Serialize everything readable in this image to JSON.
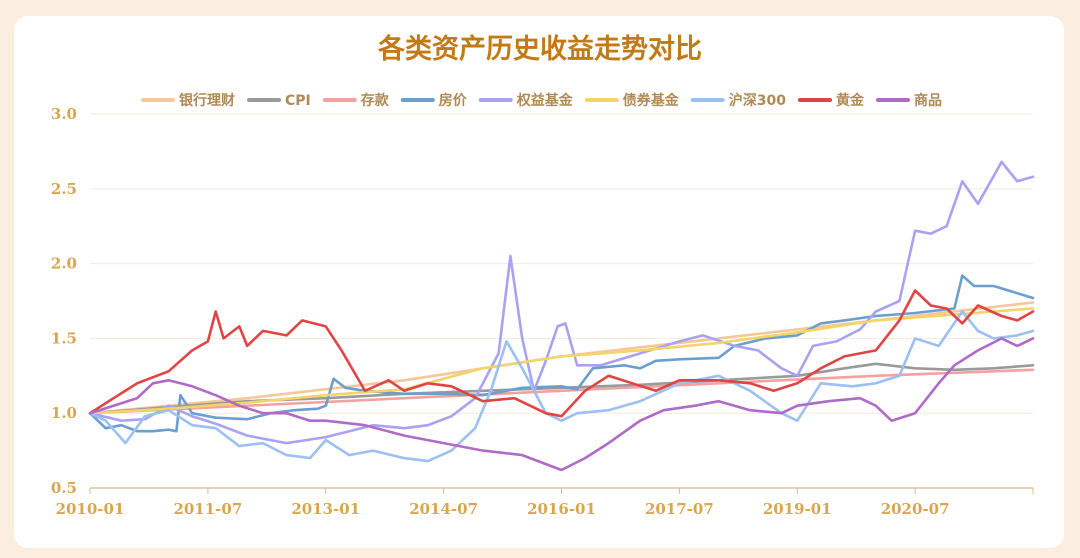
{
  "chart_data": {
    "type": "line",
    "title": "各类资产历史收益走势对比",
    "xlabel": "",
    "ylabel": "",
    "ylim": [
      0.5,
      3.0
    ],
    "yticks": [
      "3.0",
      "2.5",
      "2.0",
      "1.5",
      "1.0",
      "0.5"
    ],
    "xticks": [
      "2010-01",
      "2011-07",
      "2013-01",
      "2014-07",
      "2016-01",
      "2017-07",
      "2019-01",
      "2020-07"
    ],
    "x_range": [
      "2010-01",
      "2022-01"
    ],
    "legend_position": "top",
    "grid": "horizontal",
    "series": [
      {
        "name": "银行理财",
        "color": "#f7c79a",
        "points": [
          [
            2010.0,
            1.0
          ],
          [
            2012.0,
            1.1
          ],
          [
            2014.0,
            1.22
          ],
          [
            2016.0,
            1.38
          ],
          [
            2018.0,
            1.5
          ],
          [
            2020.0,
            1.62
          ],
          [
            2022.0,
            1.74
          ]
        ]
      },
      {
        "name": "CPI",
        "color": "#9a9a9a",
        "points": [
          [
            2010.0,
            1.0
          ],
          [
            2011.0,
            1.04
          ],
          [
            2012.0,
            1.08
          ],
          [
            2013.0,
            1.1
          ],
          [
            2014.0,
            1.13
          ],
          [
            2015.0,
            1.15
          ],
          [
            2016.0,
            1.17
          ],
          [
            2017.0,
            1.19
          ],
          [
            2018.0,
            1.22
          ],
          [
            2019.0,
            1.25
          ],
          [
            2019.6,
            1.3
          ],
          [
            2020.0,
            1.33
          ],
          [
            2020.5,
            1.3
          ],
          [
            2021.0,
            1.29
          ],
          [
            2021.5,
            1.3
          ],
          [
            2022.0,
            1.32
          ]
        ]
      },
      {
        "name": "存款",
        "color": "#f3a1a1",
        "points": [
          [
            2010.0,
            1.0
          ],
          [
            2012.0,
            1.05
          ],
          [
            2014.0,
            1.1
          ],
          [
            2016.0,
            1.15
          ],
          [
            2018.0,
            1.2
          ],
          [
            2020.0,
            1.25
          ],
          [
            2022.0,
            1.29
          ]
        ]
      },
      {
        "name": "房价",
        "color": "#6a9fcf",
        "points": [
          [
            2010.0,
            1.0
          ],
          [
            2010.2,
            0.9
          ],
          [
            2010.4,
            0.92
          ],
          [
            2010.6,
            0.88
          ],
          [
            2010.8,
            0.88
          ],
          [
            2011.0,
            0.89
          ],
          [
            2011.1,
            0.88
          ],
          [
            2011.15,
            1.12
          ],
          [
            2011.3,
            1.0
          ],
          [
            2011.6,
            0.97
          ],
          [
            2012.0,
            0.96
          ],
          [
            2012.3,
            1.0
          ],
          [
            2012.6,
            1.02
          ],
          [
            2012.9,
            1.03
          ],
          [
            2013.0,
            1.05
          ],
          [
            2013.1,
            1.23
          ],
          [
            2013.25,
            1.17
          ],
          [
            2013.5,
            1.15
          ],
          [
            2014.0,
            1.13
          ],
          [
            2014.5,
            1.13
          ],
          [
            2015.0,
            1.12
          ],
          [
            2015.5,
            1.17
          ],
          [
            2016.0,
            1.18
          ],
          [
            2016.2,
            1.16
          ],
          [
            2016.4,
            1.3
          ],
          [
            2016.8,
            1.32
          ],
          [
            2017.0,
            1.3
          ],
          [
            2017.2,
            1.35
          ],
          [
            2017.5,
            1.36
          ],
          [
            2018.0,
            1.37
          ],
          [
            2018.2,
            1.45
          ],
          [
            2018.6,
            1.5
          ],
          [
            2019.0,
            1.52
          ],
          [
            2019.3,
            1.6
          ],
          [
            2019.6,
            1.62
          ],
          [
            2020.0,
            1.65
          ],
          [
            2020.5,
            1.67
          ],
          [
            2021.0,
            1.7
          ],
          [
            2021.1,
            1.92
          ],
          [
            2021.25,
            1.85
          ],
          [
            2021.5,
            1.85
          ],
          [
            2022.0,
            1.77
          ]
        ]
      },
      {
        "name": "权益基金",
        "color": "#a9a2f2",
        "points": [
          [
            2010.0,
            1.0
          ],
          [
            2010.4,
            0.95
          ],
          [
            2010.7,
            0.96
          ],
          [
            2011.0,
            1.05
          ],
          [
            2011.3,
            0.98
          ],
          [
            2011.6,
            0.93
          ],
          [
            2012.0,
            0.85
          ],
          [
            2012.5,
            0.8
          ],
          [
            2013.0,
            0.84
          ],
          [
            2013.3,
            0.88
          ],
          [
            2013.6,
            0.92
          ],
          [
            2014.0,
            0.9
          ],
          [
            2014.3,
            0.92
          ],
          [
            2014.6,
            0.98
          ],
          [
            2014.9,
            1.1
          ],
          [
            2015.2,
            1.4
          ],
          [
            2015.35,
            2.05
          ],
          [
            2015.5,
            1.5
          ],
          [
            2015.65,
            1.15
          ],
          [
            2015.8,
            1.35
          ],
          [
            2015.95,
            1.58
          ],
          [
            2016.05,
            1.6
          ],
          [
            2016.2,
            1.32
          ],
          [
            2016.5,
            1.32
          ],
          [
            2017.0,
            1.4
          ],
          [
            2017.5,
            1.48
          ],
          [
            2017.8,
            1.52
          ],
          [
            2018.2,
            1.45
          ],
          [
            2018.5,
            1.42
          ],
          [
            2018.8,
            1.3
          ],
          [
            2019.0,
            1.25
          ],
          [
            2019.2,
            1.45
          ],
          [
            2019.5,
            1.48
          ],
          [
            2019.8,
            1.56
          ],
          [
            2020.0,
            1.68
          ],
          [
            2020.3,
            1.75
          ],
          [
            2020.5,
            2.22
          ],
          [
            2020.7,
            2.2
          ],
          [
            2020.9,
            2.25
          ],
          [
            2021.1,
            2.55
          ],
          [
            2021.3,
            2.4
          ],
          [
            2021.6,
            2.68
          ],
          [
            2021.8,
            2.55
          ],
          [
            2022.0,
            2.58
          ]
        ]
      },
      {
        "name": "债券基金",
        "color": "#f2d46a",
        "points": [
          [
            2010.0,
            1.0
          ],
          [
            2011.0,
            1.03
          ],
          [
            2012.0,
            1.07
          ],
          [
            2013.0,
            1.12
          ],
          [
            2014.0,
            1.16
          ],
          [
            2015.0,
            1.3
          ],
          [
            2016.0,
            1.38
          ],
          [
            2017.0,
            1.42
          ],
          [
            2018.0,
            1.47
          ],
          [
            2019.0,
            1.54
          ],
          [
            2020.0,
            1.62
          ],
          [
            2021.0,
            1.66
          ],
          [
            2022.0,
            1.7
          ]
        ]
      },
      {
        "name": "沪深300",
        "color": "#9cc0f2",
        "points": [
          [
            2010.0,
            1.0
          ],
          [
            2010.2,
            0.95
          ],
          [
            2010.45,
            0.8
          ],
          [
            2010.7,
            0.98
          ],
          [
            2011.0,
            1.02
          ],
          [
            2011.3,
            0.92
          ],
          [
            2011.6,
            0.9
          ],
          [
            2011.9,
            0.78
          ],
          [
            2012.2,
            0.8
          ],
          [
            2012.5,
            0.72
          ],
          [
            2012.8,
            0.7
          ],
          [
            2013.0,
            0.82
          ],
          [
            2013.3,
            0.72
          ],
          [
            2013.6,
            0.75
          ],
          [
            2014.0,
            0.7
          ],
          [
            2014.3,
            0.68
          ],
          [
            2014.6,
            0.75
          ],
          [
            2014.9,
            0.9
          ],
          [
            2015.1,
            1.15
          ],
          [
            2015.3,
            1.48
          ],
          [
            2015.5,
            1.3
          ],
          [
            2015.8,
            1.0
          ],
          [
            2016.0,
            0.95
          ],
          [
            2016.2,
            1.0
          ],
          [
            2016.6,
            1.02
          ],
          [
            2017.0,
            1.08
          ],
          [
            2017.5,
            1.2
          ],
          [
            2018.0,
            1.25
          ],
          [
            2018.4,
            1.15
          ],
          [
            2018.8,
            1.0
          ],
          [
            2019.0,
            0.95
          ],
          [
            2019.3,
            1.2
          ],
          [
            2019.7,
            1.18
          ],
          [
            2020.0,
            1.2
          ],
          [
            2020.3,
            1.25
          ],
          [
            2020.5,
            1.5
          ],
          [
            2020.8,
            1.45
          ],
          [
            2021.1,
            1.68
          ],
          [
            2021.3,
            1.55
          ],
          [
            2021.5,
            1.5
          ],
          [
            2021.8,
            1.52
          ],
          [
            2022.0,
            1.55
          ]
        ]
      },
      {
        "name": "黄金",
        "color": "#e04545",
        "points": [
          [
            2010.0,
            1.0
          ],
          [
            2010.3,
            1.1
          ],
          [
            2010.6,
            1.2
          ],
          [
            2011.0,
            1.28
          ],
          [
            2011.3,
            1.42
          ],
          [
            2011.5,
            1.48
          ],
          [
            2011.6,
            1.68
          ],
          [
            2011.7,
            1.5
          ],
          [
            2011.9,
            1.58
          ],
          [
            2012.0,
            1.45
          ],
          [
            2012.2,
            1.55
          ],
          [
            2012.5,
            1.52
          ],
          [
            2012.7,
            1.62
          ],
          [
            2013.0,
            1.58
          ],
          [
            2013.2,
            1.42
          ],
          [
            2013.5,
            1.15
          ],
          [
            2013.8,
            1.22
          ],
          [
            2014.0,
            1.15
          ],
          [
            2014.3,
            1.2
          ],
          [
            2014.6,
            1.18
          ],
          [
            2015.0,
            1.08
          ],
          [
            2015.4,
            1.1
          ],
          [
            2015.8,
            1.0
          ],
          [
            2016.0,
            0.98
          ],
          [
            2016.3,
            1.15
          ],
          [
            2016.6,
            1.25
          ],
          [
            2016.9,
            1.2
          ],
          [
            2017.2,
            1.15
          ],
          [
            2017.5,
            1.22
          ],
          [
            2018.0,
            1.22
          ],
          [
            2018.4,
            1.2
          ],
          [
            2018.7,
            1.15
          ],
          [
            2019.0,
            1.2
          ],
          [
            2019.3,
            1.3
          ],
          [
            2019.6,
            1.38
          ],
          [
            2020.0,
            1.42
          ],
          [
            2020.3,
            1.62
          ],
          [
            2020.5,
            1.82
          ],
          [
            2020.7,
            1.72
          ],
          [
            2020.9,
            1.7
          ],
          [
            2021.1,
            1.6
          ],
          [
            2021.3,
            1.72
          ],
          [
            2021.6,
            1.65
          ],
          [
            2021.8,
            1.62
          ],
          [
            2022.0,
            1.68
          ]
        ]
      },
      {
        "name": "商品",
        "color": "#b06ac7",
        "points": [
          [
            2010.0,
            1.0
          ],
          [
            2010.3,
            1.05
          ],
          [
            2010.6,
            1.1
          ],
          [
            2010.8,
            1.2
          ],
          [
            2011.0,
            1.22
          ],
          [
            2011.3,
            1.18
          ],
          [
            2011.6,
            1.12
          ],
          [
            2011.9,
            1.05
          ],
          [
            2012.2,
            1.0
          ],
          [
            2012.5,
            1.0
          ],
          [
            2012.8,
            0.95
          ],
          [
            2013.0,
            0.95
          ],
          [
            2013.5,
            0.92
          ],
          [
            2014.0,
            0.85
          ],
          [
            2014.5,
            0.8
          ],
          [
            2015.0,
            0.75
          ],
          [
            2015.5,
            0.72
          ],
          [
            2016.0,
            0.62
          ],
          [
            2016.3,
            0.7
          ],
          [
            2016.6,
            0.8
          ],
          [
            2017.0,
            0.95
          ],
          [
            2017.3,
            1.02
          ],
          [
            2017.7,
            1.05
          ],
          [
            2018.0,
            1.08
          ],
          [
            2018.4,
            1.02
          ],
          [
            2018.8,
            1.0
          ],
          [
            2019.0,
            1.05
          ],
          [
            2019.4,
            1.08
          ],
          [
            2019.8,
            1.1
          ],
          [
            2020.0,
            1.05
          ],
          [
            2020.2,
            0.95
          ],
          [
            2020.5,
            1.0
          ],
          [
            2020.8,
            1.2
          ],
          [
            2021.0,
            1.32
          ],
          [
            2021.3,
            1.42
          ],
          [
            2021.6,
            1.5
          ],
          [
            2021.8,
            1.45
          ],
          [
            2022.0,
            1.5
          ]
        ]
      }
    ]
  }
}
